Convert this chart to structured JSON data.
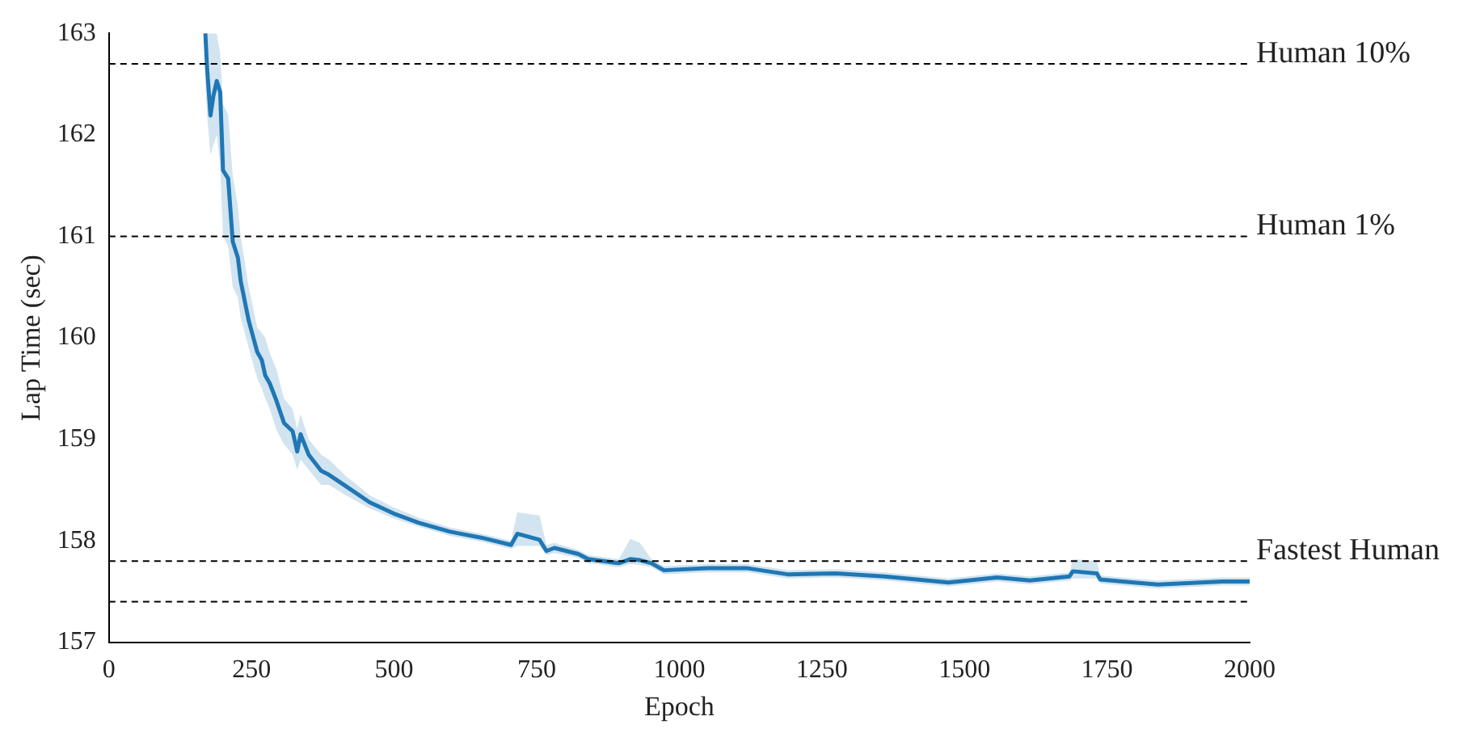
{
  "chart_data": {
    "type": "line",
    "xlabel": "Epoch",
    "ylabel": "Lap Time (sec)",
    "xlim": [
      0,
      2000
    ],
    "ylim": [
      157,
      163
    ],
    "xticks": [
      0,
      250,
      500,
      750,
      1000,
      1250,
      1500,
      1750,
      2000
    ],
    "yticks": [
      157,
      158,
      159,
      160,
      161,
      162,
      163
    ],
    "grid": false,
    "legend": false,
    "line_style": "solid",
    "marker": "none",
    "series": [
      {
        "color": "#1f77b4",
        "x": [
          169,
          172,
          178,
          183,
          189,
          195,
          200,
          209,
          217,
          226,
          231,
          245,
          260,
          268,
          274,
          282,
          293,
          307,
          322,
          330,
          336,
          350,
          372,
          386,
          415,
          457,
          499,
          542,
          598,
          654,
          705,
          716,
          755,
          767,
          781,
          823,
          840,
          894,
          914,
          931,
          951,
          973,
          1049,
          1120,
          1190,
          1275,
          1360,
          1472,
          1557,
          1614,
          1684,
          1690,
          1732,
          1738,
          1797,
          1839,
          1952,
          2000
        ],
        "values": [
          163.0,
          162.66,
          162.19,
          162.38,
          162.53,
          162.42,
          161.65,
          161.57,
          160.95,
          160.79,
          160.56,
          160.17,
          159.86,
          159.78,
          159.63,
          159.55,
          159.39,
          159.16,
          159.08,
          158.88,
          159.05,
          158.85,
          158.69,
          158.65,
          158.54,
          158.38,
          158.27,
          158.18,
          158.09,
          158.03,
          157.96,
          158.07,
          158.01,
          157.9,
          157.93,
          157.87,
          157.82,
          157.78,
          157.82,
          157.81,
          157.78,
          157.71,
          157.73,
          157.73,
          157.67,
          157.68,
          157.65,
          157.59,
          157.64,
          157.61,
          157.65,
          157.7,
          157.68,
          157.62,
          157.59,
          157.57,
          157.6,
          157.6
        ],
        "lower": [
          162.5,
          162.2,
          161.8,
          161.9,
          162.0,
          161.7,
          161.0,
          160.9,
          160.5,
          160.4,
          160.2,
          159.9,
          159.6,
          159.5,
          159.4,
          159.3,
          159.1,
          158.95,
          158.85,
          158.7,
          158.8,
          158.7,
          158.55,
          158.55,
          158.45,
          158.32,
          158.22,
          158.14,
          158.05,
          157.99,
          157.92,
          157.95,
          157.95,
          157.86,
          157.88,
          157.83,
          157.78,
          157.74,
          157.77,
          157.76,
          157.74,
          157.67,
          157.69,
          157.69,
          157.63,
          157.64,
          157.61,
          157.55,
          157.6,
          157.57,
          157.61,
          157.63,
          157.63,
          157.58,
          157.55,
          157.53,
          157.56,
          157.56
        ],
        "upper": [
          163.0,
          163.0,
          163.0,
          163.0,
          163.0,
          162.8,
          162.3,
          162.2,
          161.6,
          161.3,
          161.0,
          160.5,
          160.1,
          160.05,
          160.0,
          159.85,
          159.7,
          159.4,
          159.3,
          159.1,
          159.25,
          159.0,
          158.85,
          158.8,
          158.64,
          158.45,
          158.33,
          158.23,
          158.13,
          158.07,
          158.0,
          158.28,
          158.25,
          157.96,
          157.98,
          157.91,
          157.86,
          157.82,
          158.02,
          157.98,
          157.82,
          157.75,
          157.77,
          157.77,
          157.71,
          157.72,
          157.69,
          157.63,
          157.68,
          157.65,
          157.69,
          157.82,
          157.8,
          157.66,
          157.63,
          157.61,
          157.64,
          157.64
        ]
      }
    ],
    "ref_lines": [
      {
        "axis": "y",
        "value": 162.7,
        "label": "Human 10%",
        "color": "#000000",
        "line_style": "dashed"
      },
      {
        "axis": "y",
        "value": 161.0,
        "label": "Human 1%",
        "color": "#000000",
        "line_style": "dashed"
      },
      {
        "axis": "y",
        "value": 157.8,
        "label": "Fastest Human",
        "color": "#000000",
        "line_style": "dashed"
      },
      {
        "axis": "y",
        "value": 157.4,
        "color": "#000000",
        "line_style": "dashed"
      }
    ]
  }
}
